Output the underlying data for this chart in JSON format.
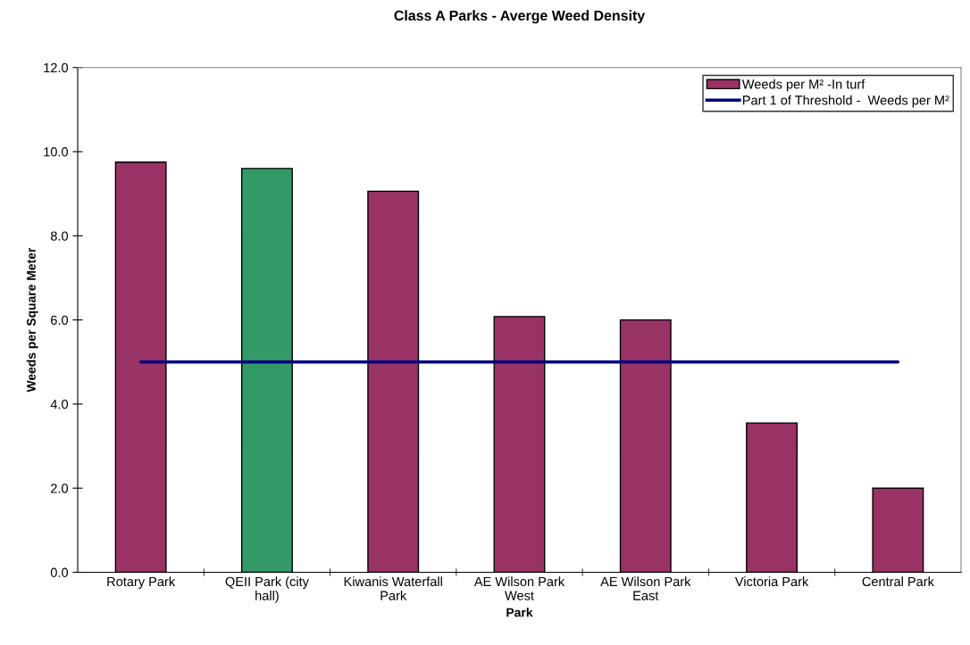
{
  "chart_data": {
    "type": "bar",
    "title": "Class A Parks - Averge Weed Density",
    "xlabel": "Park",
    "ylabel": "Weeds per Square Meter",
    "categories": [
      "Rotary Park",
      "QEII Park (city hall)",
      "Kiwanis Waterfall Park",
      "AE Wilson Park West",
      "AE Wilson Park East",
      "Victoria Park",
      "Central Park"
    ],
    "series": [
      {
        "name": "Weeds per M² -In turf",
        "color": "#993366",
        "colors": [
          "#993366",
          "#339966",
          "#993366",
          "#993366",
          "#993366",
          "#993366",
          "#993366"
        ],
        "values": [
          9.75,
          9.6,
          9.06,
          6.08,
          6.0,
          3.55,
          2.0
        ]
      },
      {
        "name": "Part 1 of Threshold -  Weeds per M²",
        "type": "line",
        "color": "#000080",
        "values": [
          5.0,
          5.0,
          5.0,
          5.0,
          5.0,
          5.0,
          5.0
        ]
      }
    ],
    "ylim": [
      0,
      12
    ],
    "yticks": [
      {
        "value": 0,
        "label": "0.0"
      },
      {
        "value": 2,
        "label": "2.0"
      },
      {
        "value": 4,
        "label": "4.0"
      },
      {
        "value": 6,
        "label": "6.0"
      },
      {
        "value": 8,
        "label": "8.0"
      },
      {
        "value": 10,
        "label": "10.0"
      },
      {
        "value": 12,
        "label": "12.0"
      }
    ],
    "grid": false,
    "legend": "top right",
    "marker": "none",
    "line_style": "solid"
  }
}
